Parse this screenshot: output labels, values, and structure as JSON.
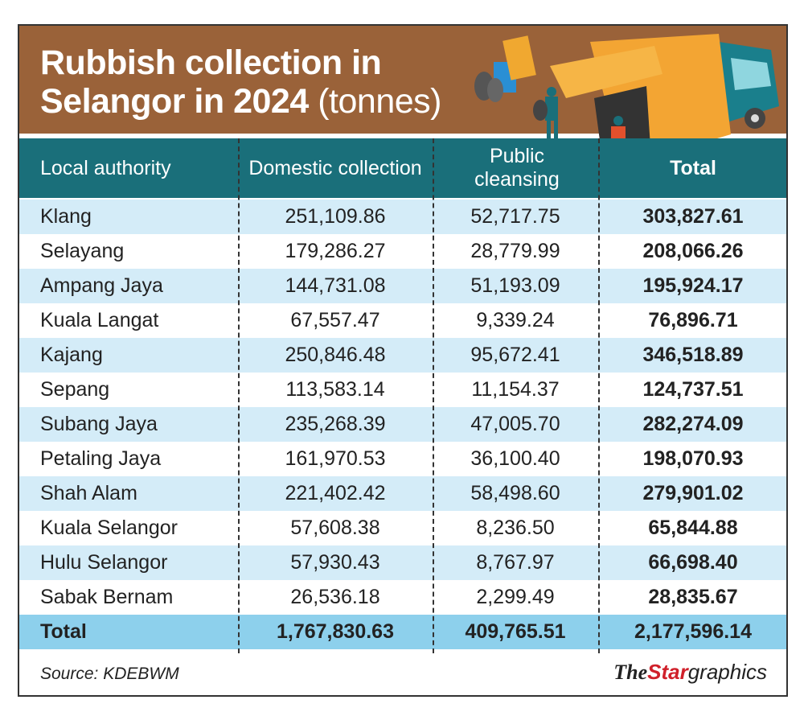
{
  "title": {
    "line1": "Rubbish collection in",
    "line2": "Selangor in 2024",
    "unit": "(tonnes)"
  },
  "colors": {
    "title_band": "#9a6239",
    "header_band": "#1a6f7a",
    "row_alt": "#d4ecf8",
    "total_row": "#8dd0ec"
  },
  "chart_data": {
    "type": "table",
    "title": "Rubbish collection in Selangor in 2024 (tonnes)",
    "columns": [
      "Local authority",
      "Domestic collection",
      "Public cleansing",
      "Total"
    ],
    "rows": [
      [
        "Klang",
        "251,109.86",
        "52,717.75",
        "303,827.61"
      ],
      [
        "Selayang",
        "179,286.27",
        "28,779.99",
        "208,066.26"
      ],
      [
        "Ampang Jaya",
        "144,731.08",
        "51,193.09",
        "195,924.17"
      ],
      [
        "Kuala Langat",
        "67,557.47",
        "9,339.24",
        "76,896.71"
      ],
      [
        "Kajang",
        "250,846.48",
        "95,672.41",
        "346,518.89"
      ],
      [
        "Sepang",
        "113,583.14",
        "11,154.37",
        "124,737.51"
      ],
      [
        "Subang Jaya",
        "235,268.39",
        "47,005.70",
        "282,274.09"
      ],
      [
        "Petaling Jaya",
        "161,970.53",
        "36,100.40",
        "198,070.93"
      ],
      [
        "Shah Alam",
        "221,402.42",
        "58,498.60",
        "279,901.02"
      ],
      [
        "Kuala Selangor",
        "57,608.38",
        "8,236.50",
        "65,844.88"
      ],
      [
        "Hulu Selangor",
        "57,930.43",
        "8,767.97",
        "66,698.40"
      ],
      [
        "Sabak Bernam",
        "26,536.18",
        "2,299.49",
        "28,835.67"
      ]
    ],
    "total_row": [
      "Total",
      "1,767,830.63",
      "409,765.51",
      "2,177,596.14"
    ]
  },
  "footer": {
    "source": "Source: KDEBWM",
    "logo": {
      "the": "The",
      "star": "Star",
      "graphics": "graphics"
    }
  }
}
